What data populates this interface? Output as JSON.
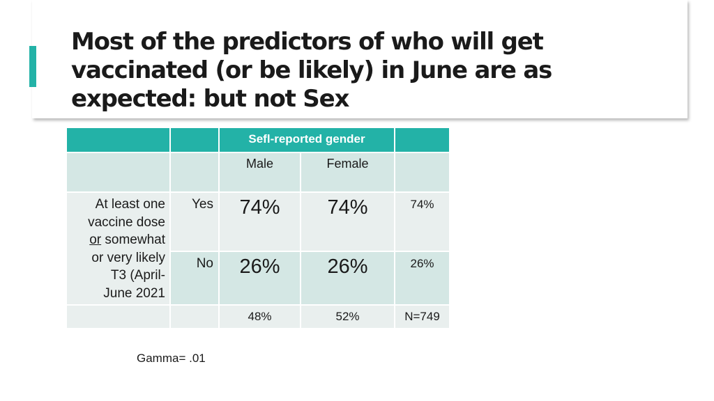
{
  "slide": {
    "title": "Most of the predictors of who will get vaccinated (or be likely) in June are as expected:  but not Sex",
    "accent_color": "#23b2a7"
  },
  "table": {
    "header_label": "Sefl-reported gender",
    "columns": [
      "Male",
      "Female"
    ],
    "row_label": {
      "line1": "At least one",
      "line2": "vaccine dose",
      "line3_underlined": "or",
      "line3_rest": " somewhat",
      "line4": "or very likely",
      "line5": "T3 (April-",
      "line6": "June 2021"
    },
    "rows": [
      {
        "label": "Yes",
        "male": "74%",
        "female": "74%",
        "total": "74%"
      },
      {
        "label": "No",
        "male": "26%",
        "female": "26%",
        "total": "26%"
      }
    ],
    "footer": {
      "male": "48%",
      "female": "52%",
      "total": "N=749"
    }
  },
  "note": "Gamma= .01"
}
